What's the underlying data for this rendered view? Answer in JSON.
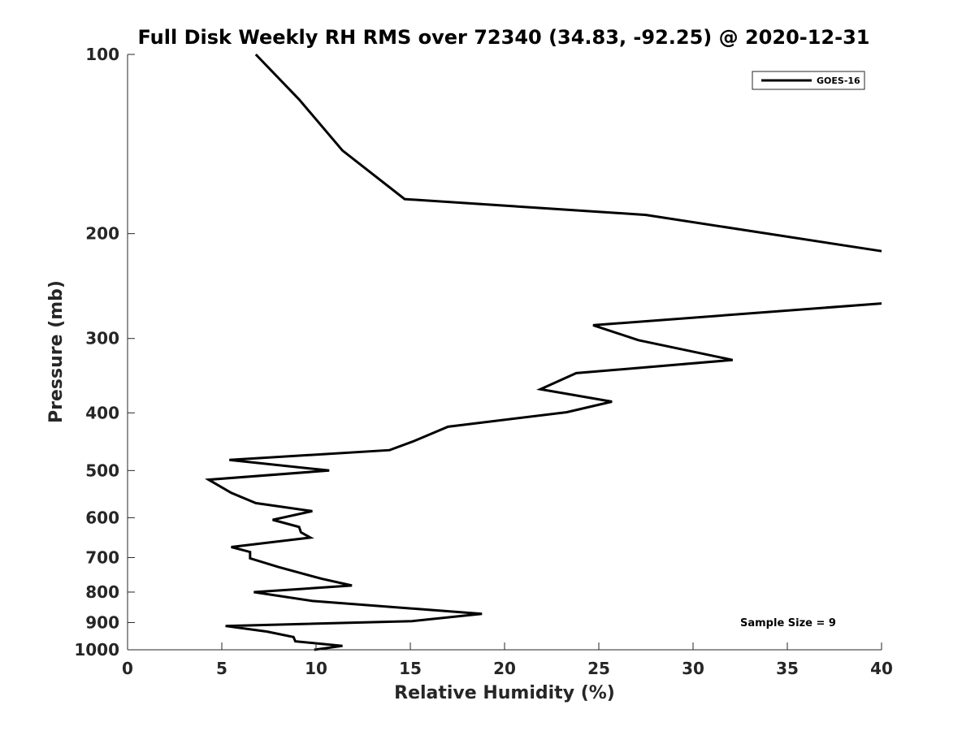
{
  "chart_data": {
    "type": "line",
    "title": "Full Disk Weekly RH RMS over 72340 (34.83, -92.25) @ 2020-12-31",
    "xlabel": "Relative Humidity (%)",
    "ylabel": "Pressure (mb)",
    "xlim": [
      0,
      40
    ],
    "ylim": [
      100,
      1000
    ],
    "y_scale": "log",
    "y_reversed": true,
    "grid": false,
    "x_ticks": [
      0,
      5,
      10,
      15,
      20,
      25,
      30,
      35,
      40
    ],
    "y_ticks": [
      100,
      200,
      300,
      400,
      500,
      600,
      700,
      800,
      900,
      1000
    ],
    "legend": {
      "entries": [
        "GOES-16"
      ],
      "position": "top-right"
    },
    "annotation": "Sample Size = 9",
    "series": [
      {
        "name": "GOES-16",
        "color": "#000000",
        "x": [
          6.8,
          9.1,
          11.4,
          14.7,
          27.5,
          40.0,
          null,
          40.0,
          24.7,
          27.1,
          32.1,
          23.8,
          21.9,
          25.7,
          23.3,
          17.0,
          15.2,
          13.9,
          5.4,
          10.7,
          4.3,
          5.5,
          6.8,
          9.8,
          7.7,
          9.1,
          9.2,
          9.7,
          5.5,
          6.5,
          6.5,
          8.0,
          10.3,
          11.9,
          6.7,
          9.8,
          18.8,
          15.1,
          5.2,
          7.4,
          8.8,
          8.9,
          11.4,
          9.9
        ],
        "y": [
          100,
          119,
          145,
          175,
          186,
          214,
          null,
          262,
          285,
          302,
          326,
          343,
          365,
          383,
          399,
          422,
          446,
          462,
          480,
          500,
          518,
          545,
          567,
          585,
          605,
          622,
          635,
          648,
          672,
          685,
          702,
          726,
          760,
          780,
          800,
          828,
          870,
          895,
          912,
          932,
          952,
          968,
          985,
          1000
        ]
      }
    ]
  }
}
